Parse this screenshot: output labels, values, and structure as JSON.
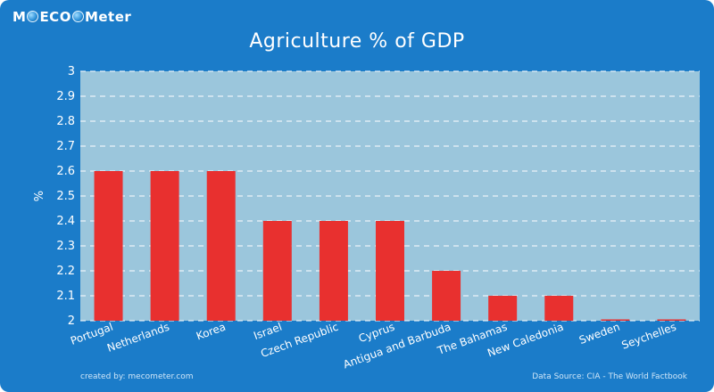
{
  "brand": {
    "prefix": "M",
    "mid": "ECO",
    "suffix": "Meter"
  },
  "chart_data": {
    "type": "bar",
    "title": "Agriculture % of GDP",
    "ylabel": "%",
    "xlabel": "",
    "ylim": [
      2,
      3
    ],
    "yticks": [
      "2",
      "2.1",
      "2.2",
      "2.3",
      "2.4",
      "2.5",
      "2.6",
      "2.7",
      "2.8",
      "2.9",
      "3"
    ],
    "categories": [
      "Portugal",
      "Netherlands",
      "Korea",
      "Israel",
      "Czech Republic",
      "Cyprus",
      "Antigua and Barbuda",
      "The Bahamas",
      "New Caledonia",
      "Sweden",
      "Seychelles"
    ],
    "values": [
      2.6,
      2.6,
      2.6,
      2.4,
      2.4,
      2.4,
      2.2,
      2.1,
      2.1,
      2.0,
      2.0
    ],
    "grid": true,
    "bar_color": "#e8302f",
    "plot_background": "#9bc6dc"
  },
  "footer": {
    "left": "created by: mecometer.com",
    "right": "Data Source: CIA - The World Factbook"
  }
}
